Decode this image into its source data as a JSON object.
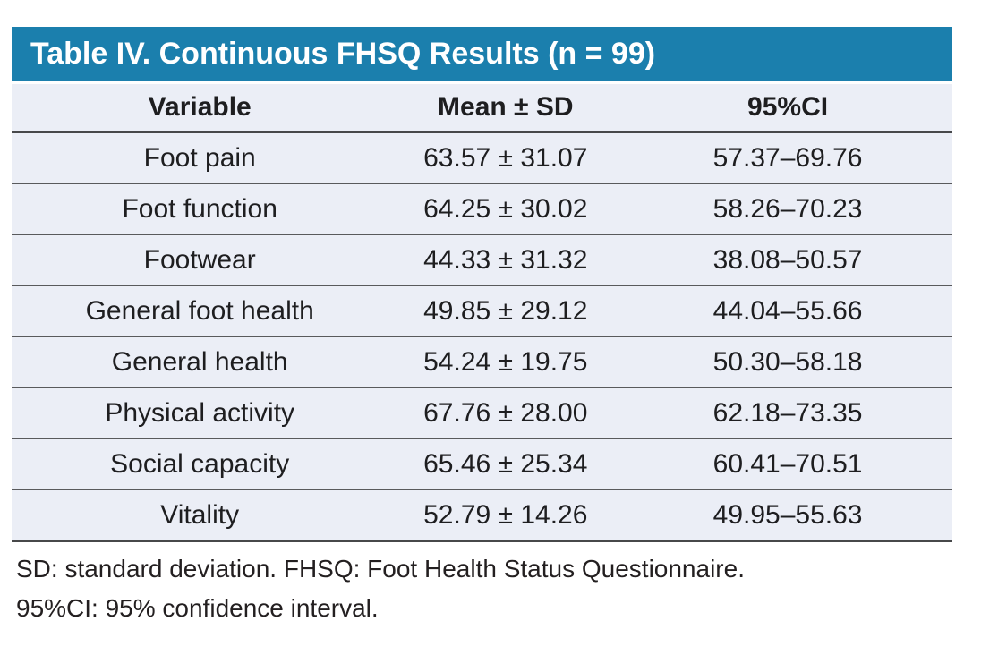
{
  "title": "Table IV. Continuous FHSQ Results (n = 99)",
  "colors": {
    "title_bar_bg": "#1b7fad",
    "title_text": "#ffffff",
    "row_bg": "#ebeef6",
    "rule_dark": "#47484a",
    "rule_light": "#595a5c",
    "body_text": "#1e1e20"
  },
  "table": {
    "columns": [
      "Variable",
      "Mean ± SD",
      "95%CI"
    ],
    "rows": [
      [
        "Foot pain",
        "63.57 ± 31.07",
        "57.37–69.76"
      ],
      [
        "Foot function",
        "64.25 ± 30.02",
        "58.26–70.23"
      ],
      [
        "Footwear",
        "44.33 ± 31.32",
        "38.08–50.57"
      ],
      [
        "General foot health",
        "49.85 ± 29.12",
        "44.04–55.66"
      ],
      [
        "General health",
        "54.24 ± 19.75",
        "50.30–58.18"
      ],
      [
        "Physical activity",
        "67.76 ± 28.00",
        "62.18–73.35"
      ],
      [
        "Social capacity",
        "65.46 ± 25.34",
        "60.41–70.51"
      ],
      [
        "Vitality",
        "52.79 ± 14.26",
        "49.95–55.63"
      ]
    ]
  },
  "footnotes": [
    "SD: standard deviation. FHSQ: Foot Health Status Questionnaire.",
    "95%CI: 95% confidence interval."
  ]
}
